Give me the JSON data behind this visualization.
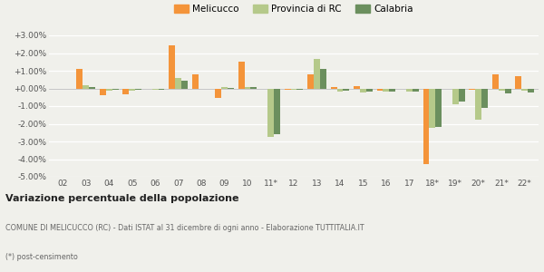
{
  "categories": [
    "02",
    "03",
    "04",
    "05",
    "06",
    "07",
    "08",
    "09",
    "10",
    "11*",
    "12",
    "13",
    "14",
    "15",
    "16",
    "17",
    "18*",
    "19*",
    "20*",
    "21*",
    "22*"
  ],
  "melicucco": [
    0.0,
    1.1,
    -0.4,
    -0.35,
    -0.05,
    2.45,
    0.8,
    -0.55,
    1.5,
    -0.05,
    -0.1,
    0.8,
    0.1,
    0.12,
    -0.15,
    -0.05,
    -4.3,
    -0.05,
    -0.1,
    0.8,
    0.7
  ],
  "provincia_rc": [
    -0.05,
    0.2,
    -0.15,
    -0.15,
    -0.1,
    0.6,
    0.0,
    0.1,
    0.1,
    -2.75,
    -0.1,
    1.65,
    -0.2,
    -0.25,
    -0.2,
    -0.2,
    -2.25,
    -0.9,
    -1.75,
    -0.15,
    -0.15
  ],
  "calabria": [
    -0.05,
    0.1,
    -0.1,
    -0.1,
    -0.1,
    0.45,
    -0.05,
    0.05,
    0.1,
    -2.6,
    -0.1,
    1.1,
    -0.15,
    -0.2,
    -0.2,
    -0.2,
    -2.2,
    -0.75,
    -1.1,
    -0.3,
    -0.25
  ],
  "color_melicucco": "#f4943a",
  "color_provincia": "#b5c98a",
  "color_calabria": "#6b8f5e",
  "ylim": [
    -5.0,
    3.0
  ],
  "yticks": [
    -5.0,
    -4.0,
    -3.0,
    -2.0,
    -1.0,
    0.0,
    1.0,
    2.0,
    3.0
  ],
  "title1": "Variazione percentuale della popolazione",
  "title2": "COMUNE DI MELICUCCO (RC) - Dati ISTAT al 31 dicembre di ogni anno - Elaborazione TUTTITALIA.IT",
  "title3": "(*) post-censimento",
  "legend_labels": [
    "Melicucco",
    "Provincia di RC",
    "Calabria"
  ],
  "bg_color": "#f0f0eb",
  "bar_width": 0.27
}
